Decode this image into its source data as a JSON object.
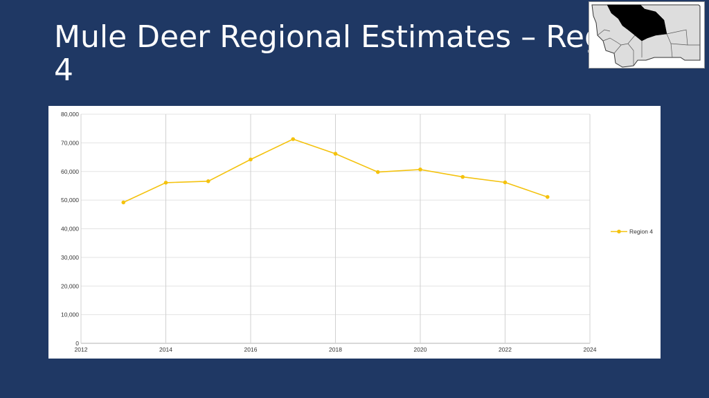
{
  "slide": {
    "title_line1": "Mule Deer Regional Estimates – Region",
    "title_line2": "4"
  },
  "map": {
    "description_icon": "montana-regions-map-icon",
    "highlight_color": "#000000",
    "other_color": "#dddddd"
  },
  "chart_data": {
    "type": "line",
    "x": [
      2013,
      2014,
      2015,
      2016,
      2017,
      2018,
      2019,
      2020,
      2021,
      2022,
      2023
    ],
    "series": [
      {
        "name": "Region 4",
        "color": "#f4c20d",
        "values": [
          49200,
          56100,
          56600,
          64200,
          71300,
          66200,
          59800,
          60700,
          58100,
          56200,
          51100
        ]
      }
    ],
    "xlim": [
      2012,
      2024
    ],
    "ylim": [
      0,
      80000
    ],
    "xticks": [
      "2012",
      "2014",
      "2016",
      "2018",
      "2020",
      "2022",
      "2024"
    ],
    "yticks": [
      "0",
      "10,000",
      "20,000",
      "30,000",
      "40,000",
      "50,000",
      "60,000",
      "70,000",
      "80,000"
    ],
    "grid": true,
    "legend": "right"
  }
}
